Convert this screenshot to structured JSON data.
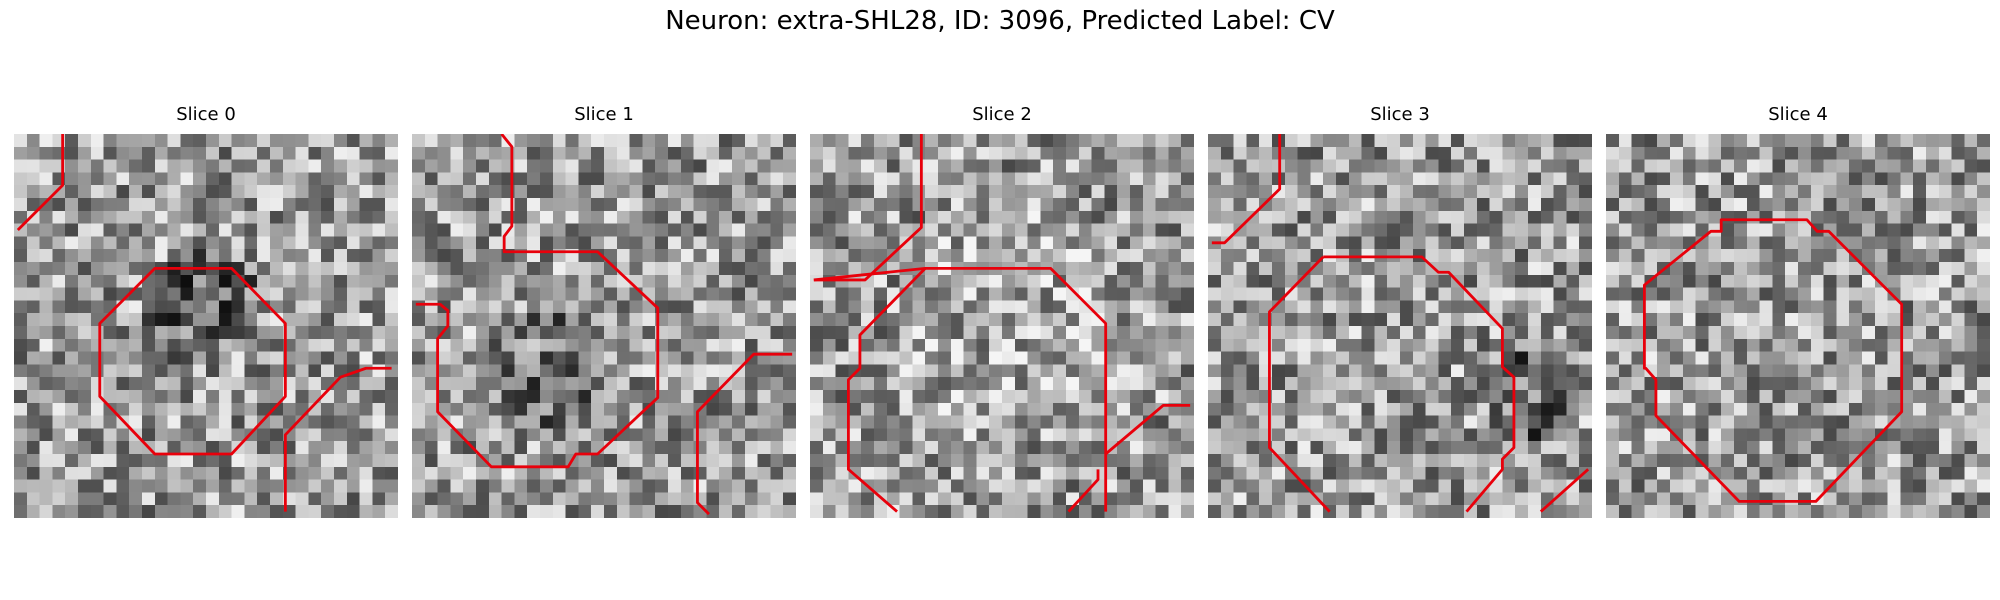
{
  "figure": {
    "title": "Neuron: extra-SHL28, ID: 3096, Predicted Label: CV"
  },
  "outline_color": "#e8000b",
  "panels": [
    {
      "title": "Slice 0"
    },
    {
      "title": "Slice 1"
    },
    {
      "title": "Slice 2"
    },
    {
      "title": "Slice 3"
    },
    {
      "title": "Slice 4"
    }
  ]
}
